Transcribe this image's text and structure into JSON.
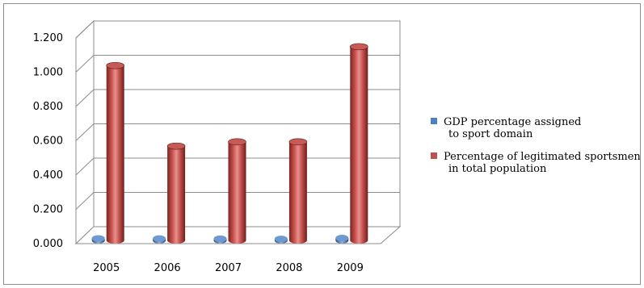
{
  "chart_data": {
    "type": "bar",
    "style": "3d-cylinder",
    "categories": [
      "2005",
      "2006",
      "2007",
      "2008",
      "2009"
    ],
    "series": [
      {
        "name_lines": [
          "GDP percentage assigned",
          "to sport domain"
        ],
        "values": [
          0.012,
          0.011,
          0.01,
          0.009,
          0.014
        ],
        "color": "#4f81bd"
      },
      {
        "name_lines": [
          "Percentage of legitimated sportsmen",
          "in total population"
        ],
        "values": [
          1.02,
          0.55,
          0.575,
          0.575,
          1.13
        ],
        "color": "#c0504d"
      }
    ],
    "ylim": [
      0,
      1.2
    ],
    "yticks": [
      "0.000",
      "0.200",
      "0.400",
      "0.600",
      "0.800",
      "1.000",
      "1.200"
    ],
    "grid": true,
    "legend_position": "right"
  }
}
